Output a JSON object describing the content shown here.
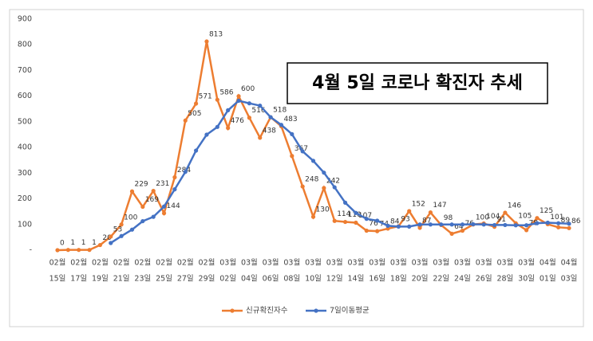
{
  "chart_data": {
    "type": "line",
    "annotation": "4월 5일 코로나 확진자 추세",
    "categories": [
      [
        "02월",
        "15일"
      ],
      null,
      [
        "02월",
        "17일"
      ],
      null,
      [
        "02월",
        "19일"
      ],
      null,
      [
        "02월",
        "21일"
      ],
      null,
      [
        "02월",
        "23일"
      ],
      null,
      [
        "02월",
        "25일"
      ],
      null,
      [
        "02월",
        "27일"
      ],
      null,
      [
        "02월",
        "29일"
      ],
      null,
      [
        "03월",
        "02일"
      ],
      null,
      [
        "03월",
        "04일"
      ],
      null,
      [
        "03월",
        "06일"
      ],
      null,
      [
        "03월",
        "08일"
      ],
      null,
      [
        "03월",
        "10일"
      ],
      null,
      [
        "03월",
        "12일"
      ],
      null,
      [
        "03월",
        "14일"
      ],
      null,
      [
        "03월",
        "16일"
      ],
      null,
      [
        "03월",
        "18일"
      ],
      null,
      [
        "03월",
        "20일"
      ],
      null,
      [
        "03월",
        "22일"
      ],
      null,
      [
        "03월",
        "24일"
      ],
      null,
      [
        "03월",
        "26일"
      ],
      null,
      [
        "03월",
        "28일"
      ],
      null,
      [
        "03월",
        "30일"
      ],
      null,
      [
        "04월",
        "01일"
      ],
      null,
      [
        "04월",
        "03일"
      ]
    ],
    "series": [
      {
        "name": "신규확진자수",
        "color": "#ed7d31",
        "show_labels": true,
        "values": [
          0,
          1,
          1,
          1,
          20,
          53,
          100,
          229,
          169,
          231,
          144,
          284,
          505,
          571,
          813,
          586,
          476,
          600,
          516,
          438,
          518,
          483,
          367,
          248,
          130,
          242,
          114,
          110,
          107,
          76,
          74,
          84,
          93,
          152,
          87,
          147,
          98,
          64,
          76,
          100,
          104,
          91,
          146,
          105,
          78,
          125,
          101,
          89,
          86
        ]
      },
      {
        "name": "7일이동평균",
        "color": "#4472c4",
        "show_labels": false,
        "values": [
          null,
          null,
          null,
          null,
          null,
          28,
          55,
          80,
          113,
          130,
          170,
          237,
          305,
          388,
          450,
          480,
          545,
          582,
          572,
          563,
          518,
          488,
          452,
          385,
          348,
          302,
          245,
          185,
          145,
          122,
          115,
          95,
          92,
          92,
          100,
          100,
          100,
          100,
          100,
          101,
          100,
          98,
          98,
          97,
          97,
          105,
          107,
          105,
          103
        ]
      }
    ],
    "ylim": [
      0,
      900
    ],
    "yticks": [
      {
        "value": 0,
        "label": "-"
      },
      100,
      200,
      300,
      400,
      500,
      600,
      700,
      800,
      900
    ],
    "grid": false,
    "legend": "bottom"
  }
}
